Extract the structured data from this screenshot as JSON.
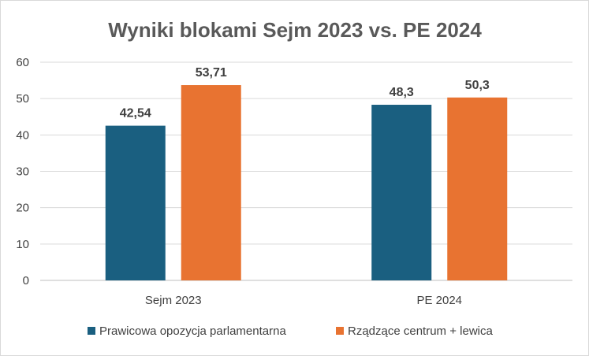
{
  "chart_data": {
    "type": "bar",
    "title": "Wyniki blokami Sejm 2023 vs. PE 2024",
    "categories": [
      "Sejm 2023",
      "PE 2024"
    ],
    "series": [
      {
        "name": "Prawicowa opozycja parlamentarna",
        "values": [
          42.54,
          48.3
        ],
        "labels": [
          "42,54",
          "48,3"
        ],
        "color": "#1a5f80"
      },
      {
        "name": "Rządzące centrum + lewica",
        "values": [
          53.71,
          50.3
        ],
        "labels": [
          "53,71",
          "50,3"
        ],
        "color": "#e87331"
      }
    ],
    "ylim": [
      0,
      60
    ],
    "yticks": [
      "0",
      "10",
      "20",
      "30",
      "40",
      "50",
      "60"
    ],
    "grid": true,
    "legend": "bottom",
    "xlabel": "",
    "ylabel": ""
  }
}
